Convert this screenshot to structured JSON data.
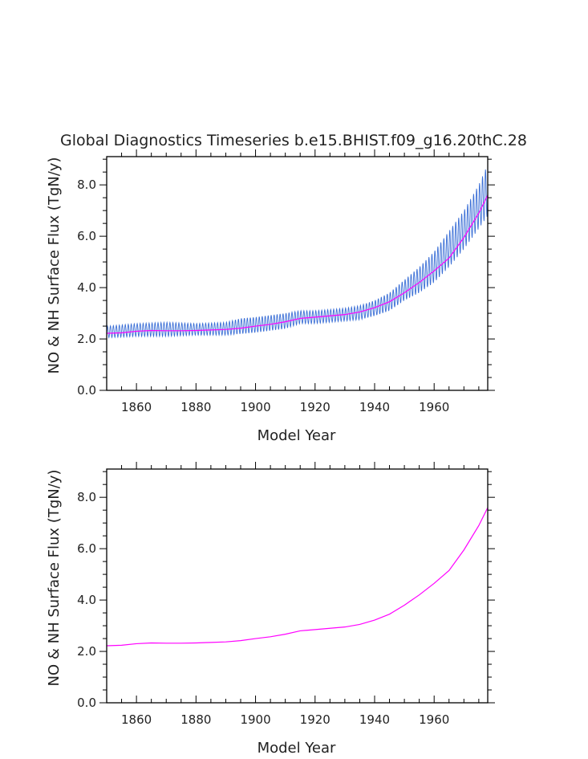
{
  "title": "Global Diagnostics Timeseries b.e15.BHIST.f09_g16.20thC.28",
  "chart_data": [
    {
      "type": "line",
      "title": "Global Diagnostics Timeseries b.e15.BHIST.f09_g16.20thC.28",
      "xlabel": "Model Year",
      "ylabel": "NO & NH Surface Flux (TgN/y)",
      "xlim": [
        1850,
        1978
      ],
      "ylim": [
        0,
        9.1
      ],
      "xticks": [
        "1860",
        "1880",
        "1900",
        "1920",
        "1940",
        "1960"
      ],
      "yticks": [
        "0.0",
        "2.0",
        "4.0",
        "6.0",
        "8.0"
      ],
      "series": [
        {
          "kind": "monthly",
          "color": "#3b6fd6",
          "x": [
            1850,
            1860,
            1870,
            1880,
            1890,
            1895,
            1900,
            1910,
            1915,
            1920,
            1930,
            1935,
            1940,
            1945,
            1950,
            1955,
            1960,
            1965,
            1970,
            1975,
            1978
          ],
          "min": [
            2.05,
            2.1,
            2.1,
            2.15,
            2.15,
            2.2,
            2.25,
            2.4,
            2.6,
            2.6,
            2.7,
            2.75,
            2.9,
            3.1,
            3.5,
            3.8,
            4.2,
            4.8,
            5.5,
            6.3,
            6.8
          ],
          "max": [
            2.5,
            2.6,
            2.65,
            2.6,
            2.65,
            2.8,
            2.85,
            3.0,
            3.1,
            3.1,
            3.2,
            3.3,
            3.5,
            3.8,
            4.3,
            4.8,
            5.4,
            6.2,
            7.0,
            8.0,
            8.8
          ]
        },
        {
          "kind": "annual",
          "color": "#ff00ff",
          "x": [
            1850,
            1855,
            1860,
            1865,
            1870,
            1875,
            1880,
            1885,
            1890,
            1895,
            1900,
            1905,
            1910,
            1915,
            1920,
            1925,
            1930,
            1935,
            1940,
            1945,
            1950,
            1955,
            1960,
            1965,
            1970,
            1975,
            1978
          ],
          "values": [
            2.22,
            2.24,
            2.3,
            2.33,
            2.32,
            2.32,
            2.33,
            2.35,
            2.37,
            2.42,
            2.5,
            2.57,
            2.67,
            2.8,
            2.85,
            2.9,
            2.95,
            3.05,
            3.22,
            3.45,
            3.8,
            4.2,
            4.65,
            5.15,
            5.95,
            6.9,
            7.6
          ]
        }
      ]
    },
    {
      "type": "line",
      "xlabel": "Model Year",
      "ylabel": "NO & NH Surface Flux (TgN/y)",
      "xlim": [
        1850,
        1978
      ],
      "ylim": [
        0,
        9.1
      ],
      "xticks": [
        "1860",
        "1880",
        "1900",
        "1920",
        "1940",
        "1960"
      ],
      "yticks": [
        "0.0",
        "2.0",
        "4.0",
        "6.0",
        "8.0"
      ],
      "series": [
        {
          "kind": "annual",
          "color": "#ff00ff",
          "x": [
            1850,
            1855,
            1860,
            1865,
            1870,
            1875,
            1880,
            1885,
            1890,
            1895,
            1900,
            1905,
            1910,
            1915,
            1920,
            1925,
            1930,
            1935,
            1940,
            1945,
            1950,
            1955,
            1960,
            1965,
            1970,
            1975,
            1978
          ],
          "values": [
            2.22,
            2.24,
            2.3,
            2.33,
            2.32,
            2.32,
            2.33,
            2.35,
            2.37,
            2.42,
            2.5,
            2.57,
            2.67,
            2.8,
            2.85,
            2.9,
            2.95,
            3.05,
            3.22,
            3.45,
            3.8,
            4.2,
            4.65,
            5.15,
            5.95,
            6.9,
            7.6
          ]
        }
      ]
    }
  ]
}
